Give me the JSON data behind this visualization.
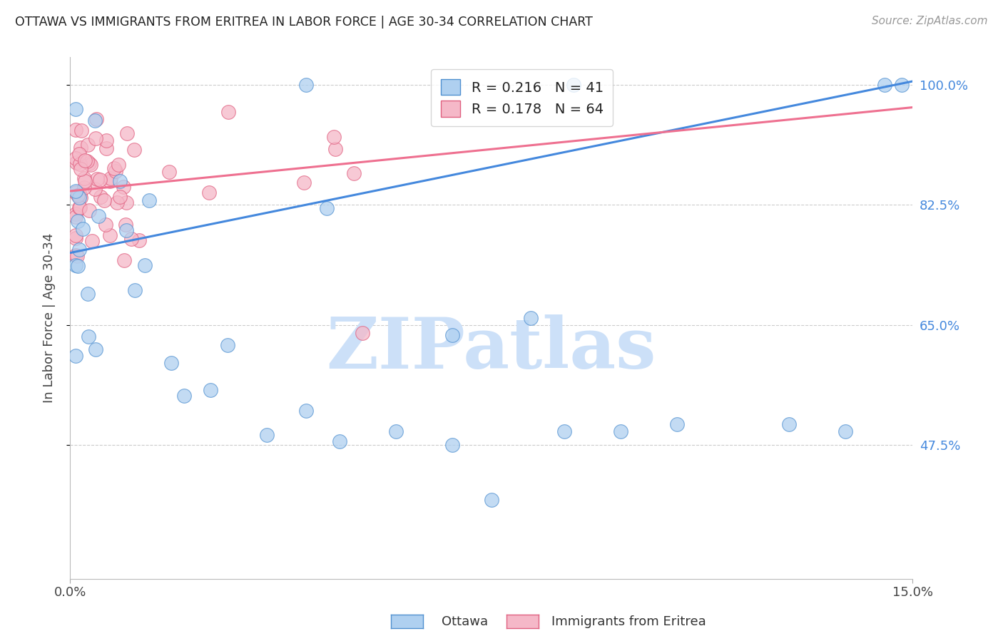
{
  "title": "OTTAWA VS IMMIGRANTS FROM ERITREA IN LABOR FORCE | AGE 30-34 CORRELATION CHART",
  "source": "Source: ZipAtlas.com",
  "ylabel": "In Labor Force | Age 30-34",
  "ytick_labels": [
    "100.0%",
    "82.5%",
    "65.0%",
    "47.5%"
  ],
  "ytick_values": [
    1.0,
    0.825,
    0.65,
    0.475
  ],
  "xmin": 0.0,
  "xmax": 0.15,
  "ymin": 0.28,
  "ymax": 1.04,
  "ottawa_R": 0.216,
  "ottawa_N": 41,
  "eritrea_R": 0.178,
  "eritrea_N": 64,
  "ottawa_color": "#afd0f0",
  "eritrea_color": "#f5b8c8",
  "ottawa_edge_color": "#5090d0",
  "eritrea_edge_color": "#e06080",
  "ottawa_line_color": "#4488dd",
  "eritrea_line_color": "#ee7090",
  "legend_label_ottawa": "Ottawa",
  "legend_label_eritrea": "Immigrants from Eritrea",
  "ottawa_line_x0": 0.0,
  "ottawa_line_y0": 0.755,
  "ottawa_line_x1": 0.15,
  "ottawa_line_y1": 1.005,
  "eritrea_line_x0": 0.0,
  "eritrea_line_y0": 0.845,
  "eritrea_line_x1": 0.15,
  "eritrea_line_y1": 0.967,
  "watermark_text": "ZIPatlas",
  "watermark_color": "#cce0f8",
  "num_blue_color": "#2266cc",
  "num_pink_color": "#dd4466"
}
